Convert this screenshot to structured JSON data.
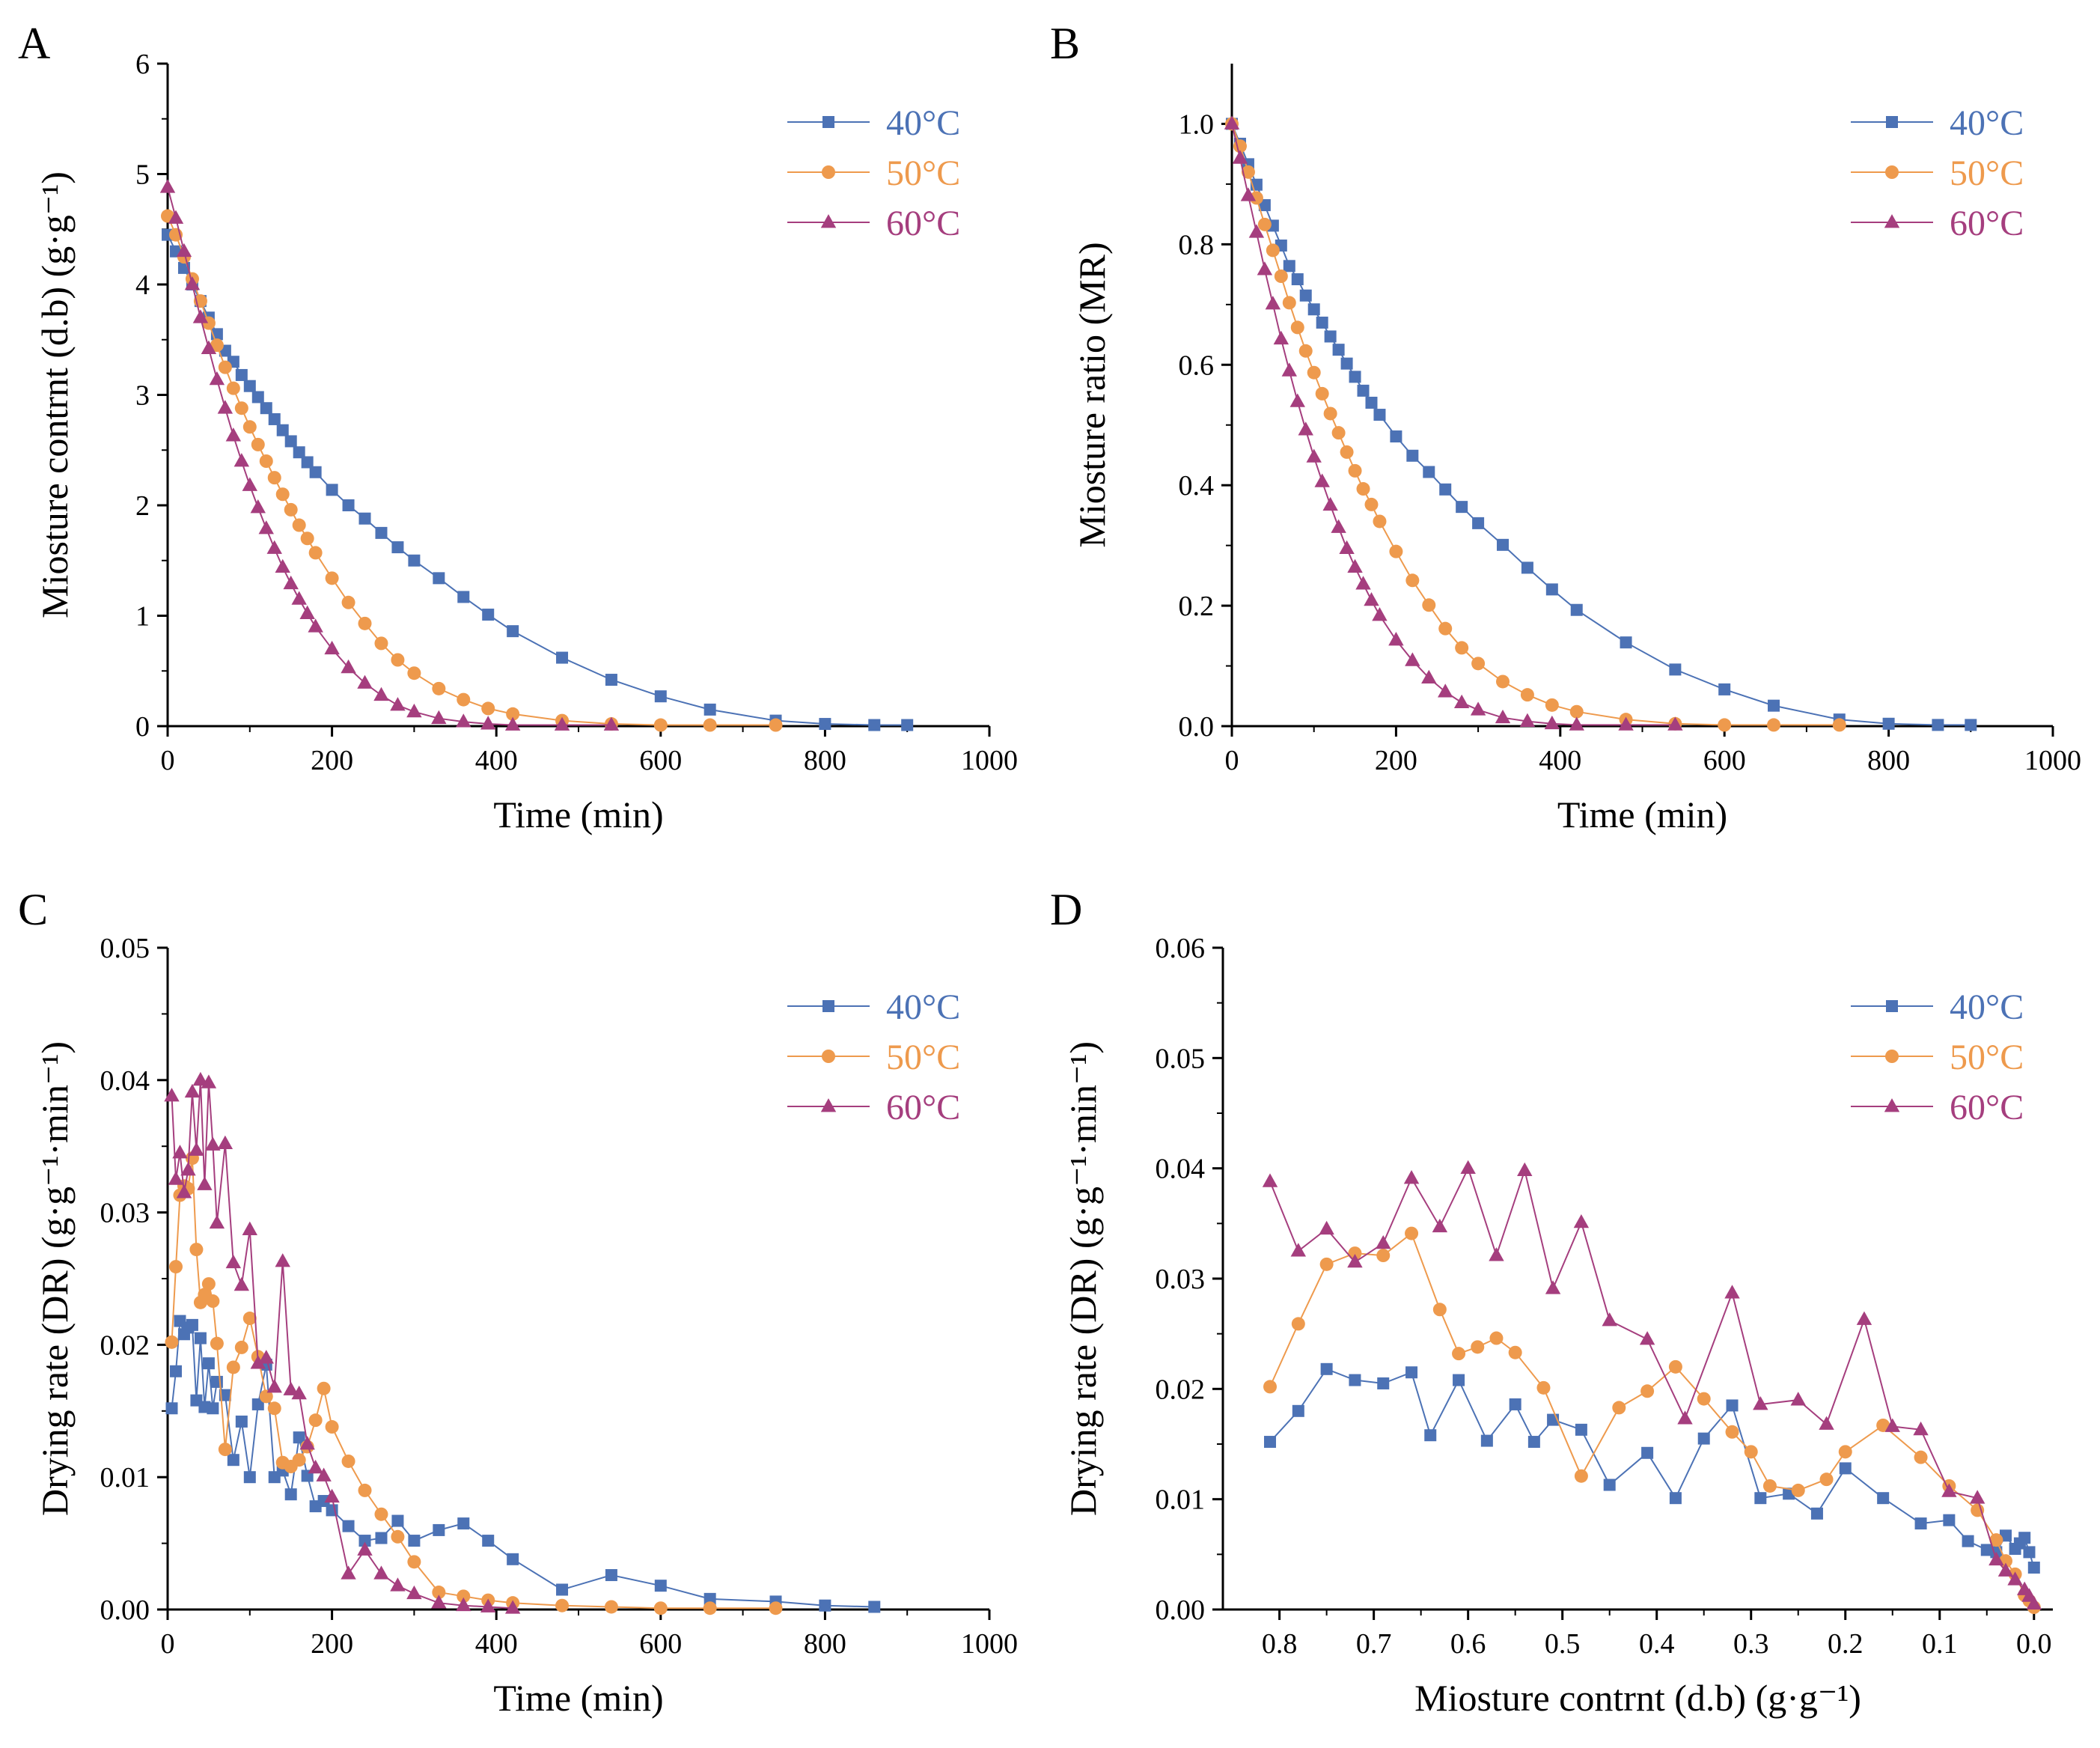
{
  "colors": {
    "40": "#4C72B5",
    "50": "#EE9A4D",
    "60": "#A53E7E",
    "axis": "#000000"
  },
  "legend_labels": [
    "40°C",
    "50°C",
    "60°C"
  ],
  "chart_data": [
    {
      "id": "A",
      "panel_label": "A",
      "type": "line",
      "xlabel": "Time (min)",
      "ylabel": "Miosture contrnt (d.b) (g·g⁻¹)",
      "xlim": [
        0,
        1000
      ],
      "ylim": [
        0,
        6
      ],
      "xticks": [
        0,
        200,
        400,
        600,
        800,
        1000
      ],
      "yticks": [
        0,
        1,
        2,
        3,
        4,
        5,
        6
      ],
      "ytick_decimals": 0,
      "legend": "top-right",
      "series": [
        {
          "name": "40°C",
          "marker": "square",
          "colorKey": "40",
          "x": [
            0,
            10,
            20,
            30,
            40,
            50,
            60,
            70,
            80,
            90,
            100,
            110,
            120,
            130,
            140,
            150,
            160,
            170,
            180,
            200,
            220,
            240,
            260,
            280,
            300,
            330,
            360,
            390,
            420,
            480,
            540,
            600,
            660,
            740,
            800,
            860,
            900
          ],
          "y": [
            4.45,
            4.3,
            4.15,
            4.0,
            3.85,
            3.7,
            3.55,
            3.4,
            3.3,
            3.18,
            3.08,
            2.98,
            2.88,
            2.78,
            2.68,
            2.58,
            2.48,
            2.39,
            2.3,
            2.14,
            2.0,
            1.88,
            1.75,
            1.62,
            1.5,
            1.34,
            1.17,
            1.01,
            0.86,
            0.62,
            0.42,
            0.27,
            0.15,
            0.05,
            0.02,
            0.01,
            0.01
          ]
        },
        {
          "name": "50°C",
          "marker": "circle",
          "colorKey": "50",
          "x": [
            0,
            10,
            20,
            30,
            40,
            50,
            60,
            70,
            80,
            90,
            100,
            110,
            120,
            130,
            140,
            150,
            160,
            170,
            180,
            200,
            220,
            240,
            260,
            280,
            300,
            330,
            360,
            390,
            420,
            480,
            540,
            600,
            660,
            740
          ],
          "y": [
            4.62,
            4.45,
            4.25,
            4.05,
            3.85,
            3.65,
            3.45,
            3.25,
            3.06,
            2.88,
            2.71,
            2.55,
            2.4,
            2.25,
            2.1,
            1.96,
            1.82,
            1.7,
            1.57,
            1.34,
            1.12,
            0.93,
            0.75,
            0.6,
            0.48,
            0.34,
            0.24,
            0.16,
            0.11,
            0.05,
            0.02,
            0.01,
            0.01,
            0.01
          ]
        },
        {
          "name": "60°C",
          "marker": "triangle",
          "colorKey": "60",
          "x": [
            0,
            10,
            20,
            30,
            40,
            50,
            60,
            70,
            80,
            90,
            100,
            110,
            120,
            130,
            140,
            150,
            160,
            170,
            180,
            200,
            220,
            240,
            260,
            280,
            300,
            330,
            360,
            390,
            420,
            480,
            540
          ],
          "y": [
            4.88,
            4.6,
            4.3,
            4.0,
            3.7,
            3.42,
            3.14,
            2.88,
            2.63,
            2.4,
            2.18,
            1.98,
            1.79,
            1.61,
            1.44,
            1.29,
            1.15,
            1.02,
            0.9,
            0.7,
            0.53,
            0.39,
            0.28,
            0.19,
            0.13,
            0.07,
            0.04,
            0.02,
            0.01,
            0.01,
            0.01
          ]
        }
      ]
    },
    {
      "id": "B",
      "panel_label": "B",
      "type": "line",
      "xlabel": "Time (min)",
      "ylabel": "Miosture ratio (MR)",
      "xlim": [
        0,
        1000
      ],
      "ylim": [
        0,
        1.1
      ],
      "xticks": [
        0,
        200,
        400,
        600,
        800,
        1000
      ],
      "yticks": [
        0,
        0.2,
        0.4,
        0.6,
        0.8,
        1.0
      ],
      "ytick_decimals": 1,
      "legend": "top-right",
      "series": [
        {
          "name": "40°C",
          "marker": "square",
          "colorKey": "40",
          "x": [
            0,
            10,
            20,
            30,
            40,
            50,
            60,
            70,
            80,
            90,
            100,
            110,
            120,
            130,
            140,
            150,
            160,
            170,
            180,
            200,
            220,
            240,
            260,
            280,
            300,
            330,
            360,
            390,
            420,
            480,
            540,
            600,
            660,
            740,
            800,
            860,
            900
          ],
          "y": [
            1.0,
            0.967,
            0.933,
            0.899,
            0.865,
            0.831,
            0.798,
            0.764,
            0.742,
            0.715,
            0.692,
            0.67,
            0.647,
            0.625,
            0.602,
            0.58,
            0.557,
            0.537,
            0.517,
            0.481,
            0.449,
            0.422,
            0.393,
            0.364,
            0.337,
            0.301,
            0.263,
            0.227,
            0.193,
            0.139,
            0.094,
            0.061,
            0.034,
            0.011,
            0.004,
            0.002,
            0.002
          ]
        },
        {
          "name": "50°C",
          "marker": "circle",
          "colorKey": "50",
          "x": [
            0,
            10,
            20,
            30,
            40,
            50,
            60,
            70,
            80,
            90,
            100,
            110,
            120,
            130,
            140,
            150,
            160,
            170,
            180,
            200,
            220,
            240,
            260,
            280,
            300,
            330,
            360,
            390,
            420,
            480,
            540,
            600,
            660,
            740
          ],
          "y": [
            1.0,
            0.963,
            0.92,
            0.877,
            0.833,
            0.79,
            0.747,
            0.703,
            0.662,
            0.623,
            0.587,
            0.552,
            0.519,
            0.487,
            0.455,
            0.424,
            0.394,
            0.368,
            0.34,
            0.29,
            0.242,
            0.201,
            0.162,
            0.13,
            0.104,
            0.074,
            0.052,
            0.035,
            0.024,
            0.011,
            0.004,
            0.002,
            0.002,
            0.002
          ]
        },
        {
          "name": "60°C",
          "marker": "triangle",
          "colorKey": "60",
          "x": [
            0,
            10,
            20,
            30,
            40,
            50,
            60,
            70,
            80,
            90,
            100,
            110,
            120,
            130,
            140,
            150,
            160,
            170,
            180,
            200,
            220,
            240,
            260,
            280,
            300,
            330,
            360,
            390,
            420,
            480,
            540
          ],
          "y": [
            1.0,
            0.943,
            0.881,
            0.82,
            0.758,
            0.701,
            0.643,
            0.59,
            0.539,
            0.492,
            0.447,
            0.406,
            0.367,
            0.33,
            0.295,
            0.264,
            0.236,
            0.209,
            0.184,
            0.143,
            0.109,
            0.08,
            0.057,
            0.039,
            0.027,
            0.014,
            0.008,
            0.004,
            0.002,
            0.002,
            0.002
          ]
        }
      ]
    },
    {
      "id": "C",
      "panel_label": "C",
      "type": "line",
      "xlabel": "Time (min)",
      "ylabel": "Drying rate (DR) (g·g⁻¹·min⁻¹)",
      "xlim": [
        0,
        1000
      ],
      "ylim": [
        0,
        0.05
      ],
      "xticks": [
        0,
        200,
        400,
        600,
        800,
        1000
      ],
      "yticks": [
        0,
        0.01,
        0.02,
        0.03,
        0.04,
        0.05
      ],
      "ytick_decimals": 2,
      "legend": "top-right",
      "series": [
        {
          "name": "40°C",
          "marker": "square",
          "colorKey": "40",
          "x": [
            5,
            10,
            15,
            20,
            25,
            30,
            35,
            40,
            45,
            50,
            55,
            60,
            70,
            80,
            90,
            100,
            110,
            120,
            130,
            140,
            150,
            160,
            170,
            180,
            190,
            200,
            220,
            240,
            260,
            280,
            300,
            330,
            360,
            390,
            420,
            480,
            540,
            600,
            660,
            740,
            800,
            860
          ],
          "y": [
            0.0152,
            0.018,
            0.0218,
            0.0208,
            0.0213,
            0.0215,
            0.0158,
            0.0205,
            0.0153,
            0.0186,
            0.0152,
            0.0172,
            0.0162,
            0.0113,
            0.0142,
            0.01,
            0.0155,
            0.0185,
            0.01,
            0.0105,
            0.0087,
            0.013,
            0.0101,
            0.0078,
            0.0082,
            0.0075,
            0.0063,
            0.0052,
            0.0054,
            0.0067,
            0.0052,
            0.006,
            0.0065,
            0.0052,
            0.0038,
            0.0015,
            0.0026,
            0.0018,
            0.0008,
            0.0006,
            0.0003,
            0.0002
          ]
        },
        {
          "name": "50°C",
          "marker": "circle",
          "colorKey": "50",
          "x": [
            5,
            10,
            15,
            20,
            25,
            30,
            35,
            40,
            45,
            50,
            55,
            60,
            70,
            80,
            90,
            100,
            110,
            120,
            130,
            140,
            150,
            160,
            170,
            180,
            190,
            200,
            220,
            240,
            260,
            280,
            300,
            330,
            360,
            390,
            420,
            480,
            540,
            600,
            660,
            740
          ],
          "y": [
            0.0202,
            0.0259,
            0.0313,
            0.032,
            0.0318,
            0.0341,
            0.0272,
            0.0232,
            0.0238,
            0.0246,
            0.0233,
            0.0201,
            0.0121,
            0.0183,
            0.0198,
            0.022,
            0.0191,
            0.0161,
            0.0152,
            0.0111,
            0.0108,
            0.0113,
            0.0123,
            0.0143,
            0.0167,
            0.0138,
            0.0112,
            0.009,
            0.0072,
            0.0055,
            0.0036,
            0.0013,
            0.001,
            0.0007,
            0.0005,
            0.0003,
            0.0002,
            0.0001,
            0.0001,
            0.0001
          ]
        },
        {
          "name": "60°C",
          "marker": "triangle",
          "colorKey": "60",
          "x": [
            5,
            10,
            15,
            20,
            25,
            30,
            35,
            40,
            45,
            50,
            55,
            60,
            70,
            80,
            90,
            100,
            110,
            120,
            130,
            140,
            150,
            160,
            170,
            180,
            190,
            200,
            220,
            240,
            260,
            280,
            300,
            330,
            360,
            390,
            420
          ],
          "y": [
            0.0388,
            0.0325,
            0.0345,
            0.0315,
            0.0332,
            0.0391,
            0.0347,
            0.04,
            0.0321,
            0.0398,
            0.0351,
            0.0292,
            0.0352,
            0.0262,
            0.0245,
            0.0287,
            0.0186,
            0.019,
            0.0168,
            0.0263,
            0.0166,
            0.0163,
            0.0125,
            0.0107,
            0.0101,
            0.0085,
            0.0027,
            0.0045,
            0.0027,
            0.0018,
            0.0012,
            0.0005,
            0.0003,
            0.0002,
            0.0001
          ]
        }
      ]
    },
    {
      "id": "D",
      "panel_label": "D",
      "type": "line",
      "xlabel": "Miosture contrnt (d.b) (g·g⁻¹)",
      "ylabel": "Drying rate (DR) (g·g⁻¹·min⁻¹)",
      "xlim": [
        0.86,
        -0.02
      ],
      "x_reversed": true,
      "ylim": [
        0,
        0.06
      ],
      "xticks": [
        0.8,
        0.7,
        0.6,
        0.5,
        0.4,
        0.3,
        0.2,
        0.1,
        0.0
      ],
      "yticks": [
        0,
        0.01,
        0.02,
        0.03,
        0.04,
        0.05,
        0.06
      ],
      "xtick_decimals": 1,
      "ytick_decimals": 2,
      "legend": "top-right",
      "series": [
        {
          "name": "40°C",
          "marker": "square",
          "colorKey": "40",
          "x": [
            0.81,
            0.78,
            0.75,
            0.72,
            0.69,
            0.66,
            0.64,
            0.61,
            0.58,
            0.55,
            0.53,
            0.51,
            0.48,
            0.45,
            0.41,
            0.38,
            0.35,
            0.32,
            0.29,
            0.26,
            0.23,
            0.2,
            0.16,
            0.12,
            0.09,
            0.07,
            0.05,
            0.04,
            0.03,
            0.02,
            0.015,
            0.01,
            0.005,
            0.0
          ],
          "y": [
            0.0152,
            0.018,
            0.0218,
            0.0208,
            0.0205,
            0.0215,
            0.0158,
            0.0208,
            0.0153,
            0.0186,
            0.0152,
            0.0172,
            0.0163,
            0.0113,
            0.0142,
            0.0101,
            0.0155,
            0.0185,
            0.0101,
            0.0105,
            0.0087,
            0.0128,
            0.0101,
            0.0078,
            0.0081,
            0.0062,
            0.0054,
            0.0052,
            0.0067,
            0.0055,
            0.006,
            0.0065,
            0.0052,
            0.0038
          ]
        },
        {
          "name": "50°C",
          "marker": "circle",
          "colorKey": "50",
          "x": [
            0.81,
            0.78,
            0.75,
            0.72,
            0.69,
            0.66,
            0.63,
            0.61,
            0.59,
            0.57,
            0.55,
            0.52,
            0.48,
            0.44,
            0.41,
            0.38,
            0.35,
            0.32,
            0.3,
            0.28,
            0.25,
            0.22,
            0.2,
            0.16,
            0.12,
            0.09,
            0.06,
            0.04,
            0.03,
            0.02,
            0.01,
            0.005,
            0.0
          ],
          "y": [
            0.0202,
            0.0259,
            0.0313,
            0.0323,
            0.0321,
            0.0341,
            0.0272,
            0.0232,
            0.0238,
            0.0246,
            0.0233,
            0.0201,
            0.0121,
            0.0183,
            0.0198,
            0.022,
            0.0191,
            0.0161,
            0.0143,
            0.0112,
            0.0108,
            0.0118,
            0.0143,
            0.0167,
            0.0138,
            0.0112,
            0.009,
            0.0063,
            0.0044,
            0.0032,
            0.0013,
            0.0008,
            0.0002
          ]
        },
        {
          "name": "60°C",
          "marker": "triangle",
          "colorKey": "60",
          "x": [
            0.81,
            0.78,
            0.75,
            0.72,
            0.69,
            0.66,
            0.63,
            0.6,
            0.57,
            0.54,
            0.51,
            0.48,
            0.45,
            0.41,
            0.37,
            0.32,
            0.29,
            0.25,
            0.22,
            0.18,
            0.15,
            0.12,
            0.09,
            0.06,
            0.04,
            0.03,
            0.02,
            0.01,
            0.005,
            0.0
          ],
          "y": [
            0.0388,
            0.0325,
            0.0345,
            0.0315,
            0.0332,
            0.0391,
            0.0347,
            0.04,
            0.0321,
            0.0398,
            0.0291,
            0.0351,
            0.0262,
            0.0245,
            0.0173,
            0.0287,
            0.0186,
            0.019,
            0.0168,
            0.0263,
            0.0166,
            0.0163,
            0.0107,
            0.0101,
            0.0045,
            0.0035,
            0.0027,
            0.0018,
            0.0012,
            0.0005
          ]
        }
      ]
    }
  ]
}
